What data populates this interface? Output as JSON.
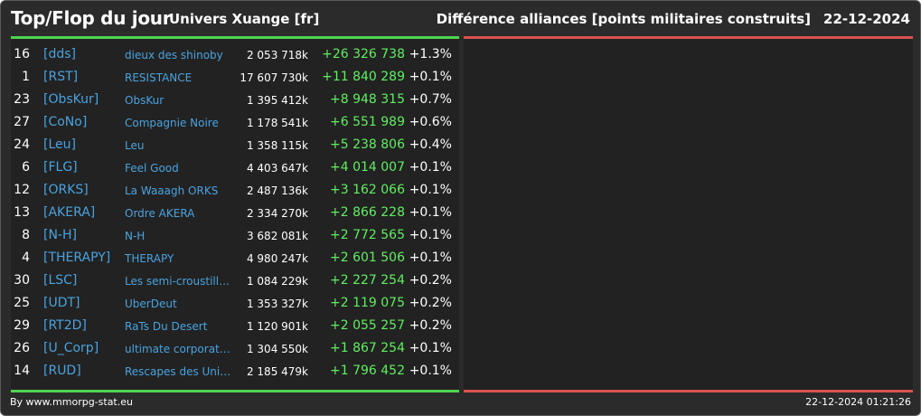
{
  "header": {
    "title": "Top/Flop du jour",
    "universe": "Univers Xuange [fr]",
    "subtitle": "Différence alliances [points militaires construits]",
    "date": "22-12-2024"
  },
  "colors": {
    "background": "#2b2b2b",
    "panel": "#222222",
    "top_bar": "#4fd44f",
    "flop_bar": "#d9534f",
    "tag_text": "#49a3e0",
    "positive_diff": "#5ef05e"
  },
  "rows": [
    {
      "rank": "16",
      "tag": "[dds]",
      "name": "dieux des shinoby",
      "points": "2 053 718k",
      "diff": "+26 326 738",
      "pct": "+1.3%"
    },
    {
      "rank": "1",
      "tag": "[RST]",
      "name": "RESISTANCE",
      "points": "17 607 730k",
      "diff": "+11 840 289",
      "pct": "+0.1%"
    },
    {
      "rank": "23",
      "tag": "[ObsKur]",
      "name": "ObsKur",
      "points": "1 395 412k",
      "diff": "+8 948 315",
      "pct": "+0.7%"
    },
    {
      "rank": "27",
      "tag": "[CoNo]",
      "name": "Compagnie Noire",
      "points": "1 178 541k",
      "diff": "+6 551 989",
      "pct": "+0.6%"
    },
    {
      "rank": "24",
      "tag": "[Leu]",
      "name": "Leu",
      "points": "1 358 115k",
      "diff": "+5 238 806",
      "pct": "+0.4%"
    },
    {
      "rank": "6",
      "tag": "[FLG]",
      "name": "Feel Good",
      "points": "4 403 647k",
      "diff": "+4 014 007",
      "pct": "+0.1%"
    },
    {
      "rank": "12",
      "tag": "[ORKS]",
      "name": "La Waaagh ORKS",
      "points": "2 487 136k",
      "diff": "+3 162 066",
      "pct": "+0.1%"
    },
    {
      "rank": "13",
      "tag": "[AKERA]",
      "name": "Ordre AKERA",
      "points": "2 334 270k",
      "diff": "+2 866 228",
      "pct": "+0.1%"
    },
    {
      "rank": "8",
      "tag": "[N-H]",
      "name": "N-H",
      "points": "3 682 081k",
      "diff": "+2 772 565",
      "pct": "+0.1%"
    },
    {
      "rank": "4",
      "tag": "[THERAPY]",
      "name": "THERAPY",
      "points": "4 980 247k",
      "diff": "+2 601 506",
      "pct": "+0.1%"
    },
    {
      "rank": "30",
      "tag": "[LSC]",
      "name": "Les semi-croustilla...",
      "points": "1 084 229k",
      "diff": "+2 227 254",
      "pct": "+0.2%"
    },
    {
      "rank": "25",
      "tag": "[UDT]",
      "name": "UberDeut",
      "points": "1 353 327k",
      "diff": "+2 119 075",
      "pct": "+0.2%"
    },
    {
      "rank": "29",
      "tag": "[RT2D]",
      "name": "RaTs Du Desert",
      "points": "1 120 901k",
      "diff": "+2 055 257",
      "pct": "+0.2%"
    },
    {
      "rank": "26",
      "tag": "[U_Corp]",
      "name": "ultimate corporation",
      "points": "1 304 550k",
      "diff": "+1 867 254",
      "pct": "+0.1%"
    },
    {
      "rank": "14",
      "tag": "[RUD]",
      "name": "Rescapes des Univ...",
      "points": "2 185 479k",
      "diff": "+1 796 452",
      "pct": "+0.1%"
    }
  ],
  "footer": {
    "credit": "By www.mmorpg-stat.eu",
    "timestamp": "22-12-2024 01:21:26"
  }
}
